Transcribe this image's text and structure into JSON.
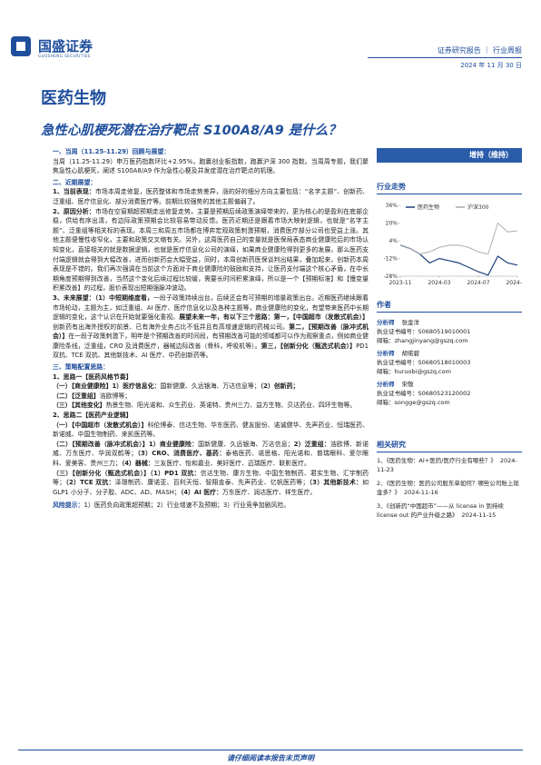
{
  "header": {
    "logo_name": "国盛证券",
    "logo_en": "GUOSHENG SECURITIES",
    "report_type": "证券研究报告 ｜ 行业周报",
    "date": "2024 年 11 月 30 日"
  },
  "sector": "医药生物",
  "title": "急性心肌梗死潜在治疗靶点 S100A8/A9 是什么？",
  "rating": "增持（维持）",
  "sections": [
    {
      "heading": "一、当周（11.25-11.29）回顾与展望：",
      "paragraphs": [
        [
          {
            "t": "当周（11.25-11.29）申万医药指数环比+2.95%，跑赢创业板指数，跑赢沪深 300 指数。当周周专题，我们聚焦急性心肌梗死，阐述 S100A8/A9 作为急性心梗及并发症潜在治疗靶点的机理。",
            "b": false
          }
        ]
      ]
    },
    {
      "heading": "二、近期展望：",
      "paragraphs": [
        [
          {
            "t": "1、当前表现：",
            "b": true
          },
          {
            "t": "市场本周走修复，医药整体和市场走势差异，涨的好的细分方向主要包括：“名字主题”、创新药、泛重组、医疗信息化、部分消费医疗等。前期比较强势的其他主题偏弱了。",
            "b": false
          }
        ],
        [
          {
            "t": "2、原因分析：",
            "b": true
          },
          {
            "t": "市场在空窗期超预期走出修复走势，主要是预期后续政策演绎带来的，更为核心的是盈利在底部企稳，供给有序出清，有边际政策预期会比较容易带动反馈。医药近期还是跟着市场大映射逻辑，也就是“名字主题”、泛重组等相关标的表现。本周三和周五市场都在博弈宏观政策刺激预期，消费医疗部分公司也受益上涨。其他主题便慢性收窄化，主要和政策交叉缩有关。另外，这周医药自己的变量就是医保局表态商业健康险后的市场认知变化，直接相关的就是数据逻辑，也就是医疗信息化公司的演绎，如果商业健康险得到更多的发展，那么医药支付端逻辑就会得到大幅改善，进而创新药会大幅受益，同时，本周创新药医保谈判出结果，叠加起来，创新药本周表现是不错的。我们再次强调在当前这个方面对于商业健康险的鼓励和支持，让医药支付端这个核心矛盾，在中长期角度预期得到改善，当然这个变化后续过程比较缓，需要长时间积累演绎，所以是一个【预期标准】和【慢变量积累改善】的过程，股价表现出短期强脉冲波动。",
            "b": false
          }
        ],
        [
          {
            "t": "3、未来展望：",
            "b": true
          },
          {
            "t": "（1）中短期维度看，",
            "b": true
          },
          {
            "t": "一段子政策持续出台，后续还会有可预期的增量政策出台。近期医药继续跟着市场轮动，主题为主，如泛重组、AI 医疗、医疗信息化以及各种主题等，商业健康险的变化，有望带来医药中长期逻辑的变化，这个认识在开始就要强化重视。",
            "b": false
          },
          {
            "t": "展望未来一年，有以下三个思路：第一，【中国超市（发散式机会）】",
            "b": true
          },
          {
            "t": "创新药有出海外授权的前景、已有海外业务占比不低并且有高增速逻辑的药械公司。",
            "b": false
          },
          {
            "t": "第二，【预期改善（脉冲式机会）】",
            "b": true
          },
          {
            "t": "在一段子政策刺激下，明年是个预期改善的时间段，有预期改善可能的领域都可以作为观察重点，例如商业健康险条线，泛重组，CRO 及消费医疗，器械边际改善（骨科，呼吸机等）。",
            "b": false
          },
          {
            "t": "第三，【创新分化（甄选式机会）】",
            "b": true
          },
          {
            "t": "PD1 双抗、TCE 双抗、其他新技术、AI 医疗、中药创新药等。",
            "b": false
          }
        ]
      ]
    },
    {
      "heading": "三、策略配置思路：",
      "paragraphs": [
        [
          {
            "t": "1、思路一【医药风格节奏】",
            "b": true
          }
        ],
        [
          {
            "t": "（一）【商业健康险】1）医疗信息化：",
            "b": true
          },
          {
            "t": "国新健康、久远银海、万达信息等；",
            "b": false
          },
          {
            "t": "（2）创新药；",
            "b": true
          }
        ],
        [
          {
            "t": "（二）【泛重组】",
            "b": true
          },
          {
            "t": "浩欧博等；",
            "b": false
          }
        ],
        [
          {
            "t": "（三）【其他变化】",
            "b": true
          },
          {
            "t": "热景生物、阳光诺和、众生药业、英诺特、贵州三力、益方生物、贝达药业、四环生物等。",
            "b": false
          }
        ],
        [
          {
            "t": "2、思路二【医药产业逻辑】",
            "b": true
          }
        ],
        [
          {
            "t": "（一）【中国超市（发散式机会）】",
            "b": true
          },
          {
            "t": "科伦博泰、信达生物、华东医药、健友股份、诺诚健华、先声药业、恒瑞医药、新诺威、中国生物制药、来凯医药等。",
            "b": false
          }
        ],
        [
          {
            "t": "（二）【预期改善（脉冲式机会）】1）商业健康险：",
            "b": true
          },
          {
            "t": "国新健康、久远银海、万达信息；",
            "b": false
          },
          {
            "t": "2）泛重组：",
            "b": true
          },
          {
            "t": "浩欧博、新诺威、万东医疗、华润双鹤等；",
            "b": false
          },
          {
            "t": "（3）CRO、消费医疗、基药：",
            "b": true
          },
          {
            "t": "泰格医药、诺思格、阳光诺和、普瑞眼科、爱尔眼科、爱美客、贵州三力；",
            "b": false
          },
          {
            "t": "（4）器械：",
            "b": true
          },
          {
            "t": "三友医疗、怡和嘉业、美好医疗、迈瑞医疗、联影医疗。",
            "b": false
          }
        ],
        [
          {
            "t": "（三）【创新分化（甄选式机会）】（1）PD1 双抗：",
            "b": true
          },
          {
            "t": "信达生物、康方生物、中国生物制药、君实生物、汇宇制药等；",
            "b": false
          },
          {
            "t": "（2）TCE 双抗：",
            "b": true
          },
          {
            "t": "泽璟制药、康诺亚、百利天恒、智翔金泰、先声药业、亿帆医药等；",
            "b": false
          },
          {
            "t": "（3）其他新技术：",
            "b": true
          },
          {
            "t": "如 GLP1 小分子、分子胶、ADC、AD、MASH；",
            "b": false
          },
          {
            "t": "（4）AI 医疗：",
            "b": true
          },
          {
            "t": "万东医疗、润达医疗、祥生医疗。",
            "b": false
          }
        ]
      ]
    }
  ],
  "risk": {
    "label": "风险提示：",
    "text": "1）医药负向政策超预期；2）行业增速不及预期；3）行业竞争加剧风险。"
  },
  "sidebar": {
    "trend_title": "行业走势",
    "authors_title": "作者",
    "related_title": "相关研究",
    "authors": [
      {
        "role": "分析师",
        "name": "张金洋",
        "cert": "执业证书编号：S0680519010001",
        "email": "邮箱：zhangjinyang@gszq.com"
      },
      {
        "role": "分析师",
        "name": "胡偌碧",
        "cert": "执业证书编号：S0680518010003",
        "email": "邮箱：huruobi@gszq.com"
      },
      {
        "role": "分析师",
        "name": "宋敬",
        "cert": "执业证书编号：S0680523120002",
        "email": "邮箱：songge@gszq.com"
      }
    ],
    "related": [
      {
        "text": "1、《医药生物：AI+医药/医疗行业有哪些？》",
        "date": "2024-11-23"
      },
      {
        "text": "2、《医药生物：医药公司股东单如何？哪些公司账上现金多？》",
        "date": "2024-11-16"
      },
      {
        "text": "3、《创新药“中国超市”——从 license in 到持续 license out 的产业升级之路》",
        "date": "2024-11-15"
      }
    ]
  },
  "chart_data": {
    "type": "line",
    "x": [
      "2023-11",
      "2023-12",
      "2024-01",
      "2024-02",
      "2024-03",
      "2024-04",
      "2024-05",
      "2024-06",
      "2024-07",
      "2024-08",
      "2024-09",
      "2024-10",
      "2024-11"
    ],
    "xticks": [
      "2023-11",
      "2024-03",
      "2024-07",
      "2024-11"
    ],
    "series": [
      {
        "name": "医药生物",
        "color": "#1f3f7a",
        "values": [
          0,
          -3,
          -8,
          -16,
          -12,
          -14,
          -16,
          -20,
          -24,
          -27,
          -10,
          -16,
          -18
        ]
      },
      {
        "name": "沪深300",
        "color": "#a8a8a8",
        "values": [
          0,
          -3,
          -8,
          -6,
          -2,
          0,
          0,
          -2,
          -6,
          -8,
          20,
          12,
          13
        ]
      }
    ],
    "ylim": [
      -28,
      36
    ],
    "yticks": [
      {
        "value": 36,
        "label": "36%"
      },
      {
        "value": 20,
        "label": "20%"
      },
      {
        "value": 4,
        "label": "4%"
      },
      {
        "value": -12,
        "label": "-12%"
      },
      {
        "value": -28,
        "label": "-28%"
      }
    ]
  },
  "footer": "请仔细阅读本报告末页声明"
}
